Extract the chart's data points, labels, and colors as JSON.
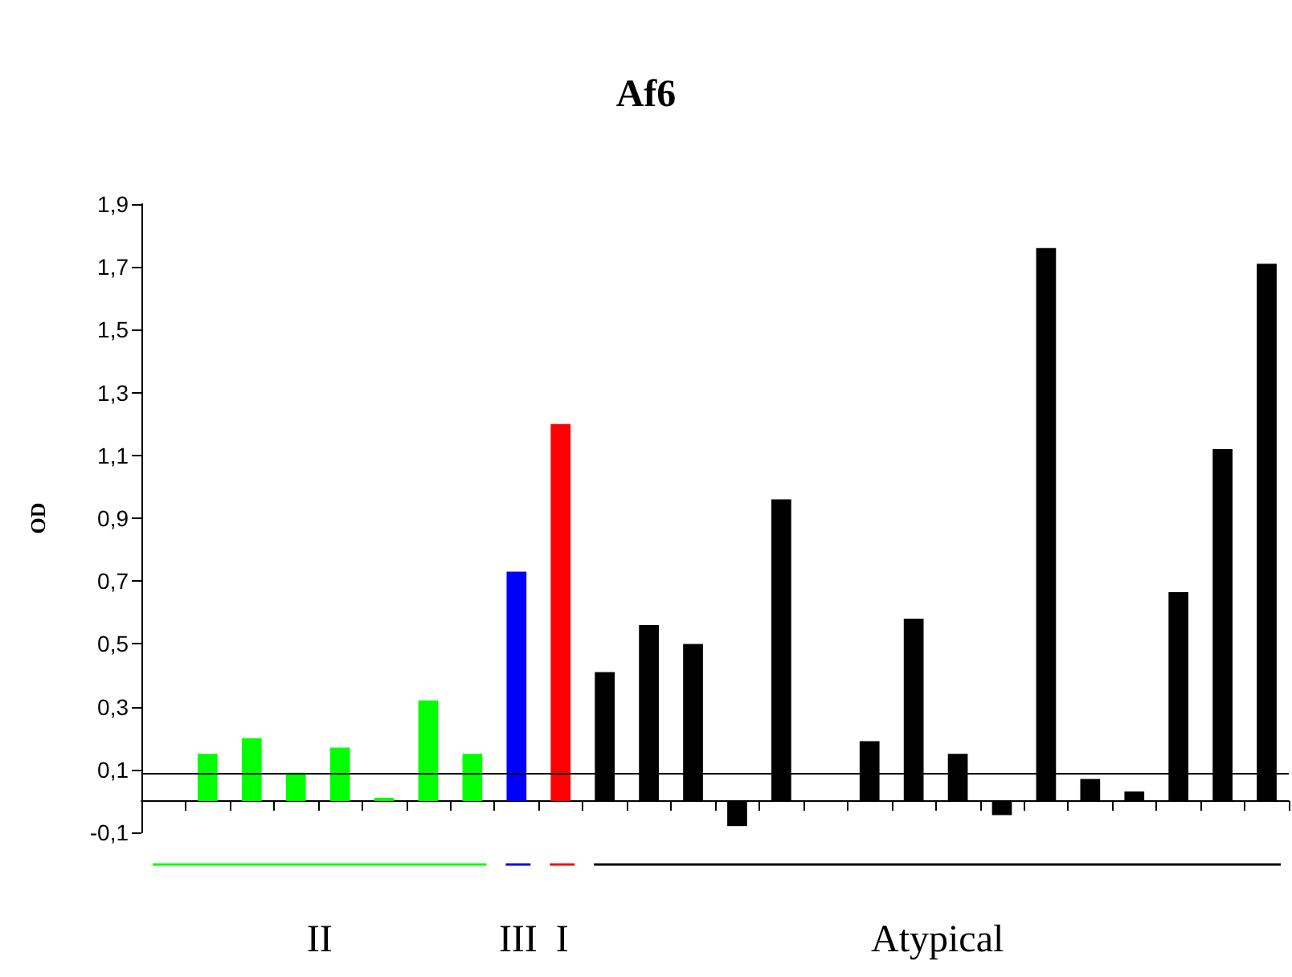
{
  "chart_data": {
    "type": "bar",
    "title": "Af6",
    "ylabel": "OD",
    "categories": [
      null,
      null,
      null,
      null,
      null,
      null,
      null,
      null,
      null,
      null,
      null,
      null,
      null,
      null,
      null,
      null,
      null,
      null,
      null,
      null,
      null,
      null,
      null,
      null,
      null,
      null
    ],
    "values": [
      null,
      0.15,
      0.2,
      0.09,
      0.17,
      0.01,
      0.32,
      0.15,
      0.73,
      1.2,
      0.41,
      0.56,
      0.5,
      -0.08,
      0.96,
      null,
      0.19,
      0.58,
      0.15,
      -0.045,
      1.76,
      0.07,
      0.03,
      0.665,
      1.12,
      1.71
    ],
    "colors": [
      "#00ff00",
      "#00ff00",
      "#00ff00",
      "#00ff00",
      "#00ff00",
      "#00ff00",
      "#00ff00",
      "#00ff00",
      "#0000ff",
      "#ff0000",
      "#000000",
      "#000000",
      "#000000",
      "#000000",
      "#000000",
      "#000000",
      "#000000",
      "#000000",
      "#000000",
      "#000000",
      "#000000",
      "#000000",
      "#000000",
      "#000000",
      "#000000",
      "#000000"
    ],
    "ylim": [
      -0.1,
      1.9
    ],
    "yticks": [
      {
        "value": -0.1,
        "label": "-0,1"
      },
      {
        "value": 0.1,
        "label": "0,1"
      },
      {
        "value": 0.3,
        "label": "0,3"
      },
      {
        "value": 0.5,
        "label": "0,5"
      },
      {
        "value": 0.7,
        "label": "0,7"
      },
      {
        "value": 0.9,
        "label": "0,9"
      },
      {
        "value": 1.1,
        "label": "1,1"
      },
      {
        "value": 1.3,
        "label": "1,3"
      },
      {
        "value": 1.5,
        "label": "1,5"
      },
      {
        "value": 1.7,
        "label": "1,7"
      },
      {
        "value": 1.9,
        "label": "1,9"
      }
    ],
    "ref_lines": [
      {
        "axis": "y",
        "value": 0.09,
        "color": "#000000"
      }
    ],
    "annotations": [
      "II",
      "III",
      "I",
      "Atypical"
    ],
    "grid": false
  }
}
